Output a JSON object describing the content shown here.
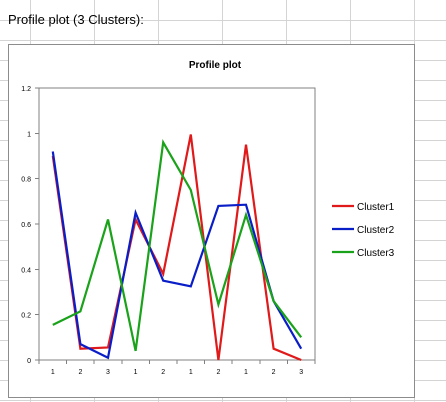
{
  "sheet": {
    "title_cell": "Profile plot (3 Clusters):"
  },
  "chart_data": {
    "type": "line",
    "title": "Profile plot",
    "xlabel": "",
    "ylabel": "",
    "categories": [
      "1",
      "2",
      "3",
      "1",
      "2",
      "1",
      "2",
      "1",
      "2",
      "3"
    ],
    "ylim": [
      0,
      1.2
    ],
    "yticks": [
      "0",
      "0.2",
      "0.4",
      "0.6",
      "0.8",
      "1",
      "1.2"
    ],
    "grid": false,
    "legend_position": "right",
    "series": [
      {
        "name": "Cluster1",
        "color": "#e0191a",
        "values": [
          0.9,
          0.05,
          0.055,
          0.62,
          0.38,
          0.995,
          0.0,
          0.95,
          0.05,
          0.0
        ]
      },
      {
        "name": "Cluster2",
        "color": "#0a1ec8",
        "values": [
          0.92,
          0.07,
          0.01,
          0.65,
          0.35,
          0.325,
          0.68,
          0.685,
          0.26,
          0.05
        ]
      },
      {
        "name": "Cluster3",
        "color": "#1aa31a",
        "values": [
          0.155,
          0.215,
          0.62,
          0.04,
          0.96,
          0.75,
          0.245,
          0.64,
          0.26,
          0.1
        ]
      }
    ]
  }
}
